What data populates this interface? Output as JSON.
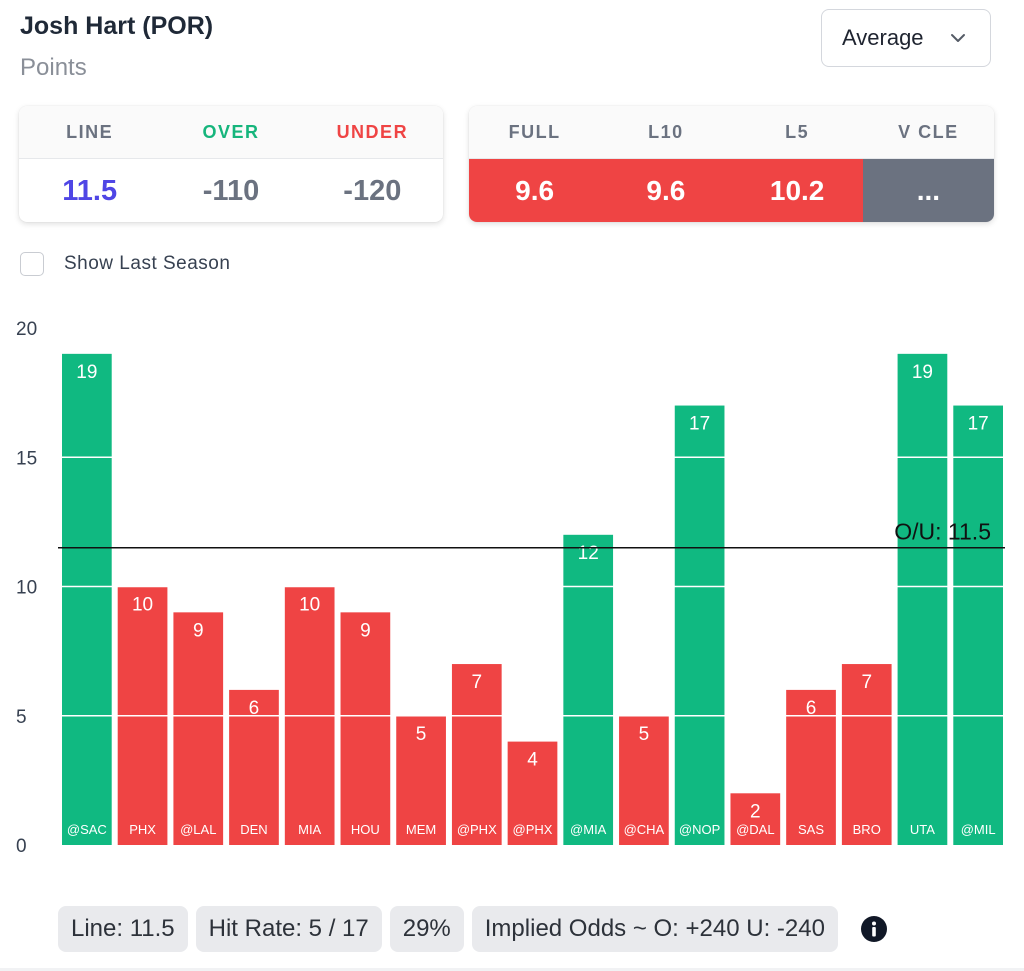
{
  "header": {
    "player": "Josh Hart (POR)",
    "stat": "Points"
  },
  "dropdown": {
    "selected": "Average",
    "icon": "chevron-down-icon"
  },
  "line_card": {
    "headers": [
      "LINE",
      "OVER",
      "UNDER"
    ],
    "line": "11.5",
    "over": "-110",
    "under": "-120"
  },
  "avg_card": {
    "headers": [
      "FULL",
      "L10",
      "L5",
      "V CLE"
    ],
    "values": [
      "9.6",
      "9.6",
      "10.2",
      "..."
    ]
  },
  "checkbox": {
    "label": "Show Last Season",
    "checked": false
  },
  "colors": {
    "over": "#10b981",
    "under": "#ef4444",
    "line": "#4f46e5",
    "neutral": "#6b7280"
  },
  "chart_data": {
    "type": "bar",
    "categories": [
      "@SAC",
      "PHX",
      "@LAL",
      "DEN",
      "MIA",
      "HOU",
      "MEM",
      "@PHX",
      "@PHX",
      "@MIA",
      "@CHA",
      "@NOP",
      "@DAL",
      "SAS",
      "BRO",
      "UTA",
      "@MIL"
    ],
    "values": [
      19,
      10,
      9,
      6,
      10,
      9,
      5,
      7,
      4,
      12,
      5,
      17,
      2,
      6,
      7,
      19,
      17
    ],
    "ylim": [
      0,
      20
    ],
    "yticks": [
      0,
      5,
      10,
      15,
      20
    ],
    "ou_line": 11.5,
    "ou_label": "O/U: 11.5",
    "grid": true
  },
  "footer": {
    "line": "Line: 11.5",
    "hit_rate": "Hit Rate: 5 / 17",
    "percent": "29%",
    "implied": "Implied Odds ~ O: +240 U: -240",
    "info_icon": "info-icon"
  }
}
